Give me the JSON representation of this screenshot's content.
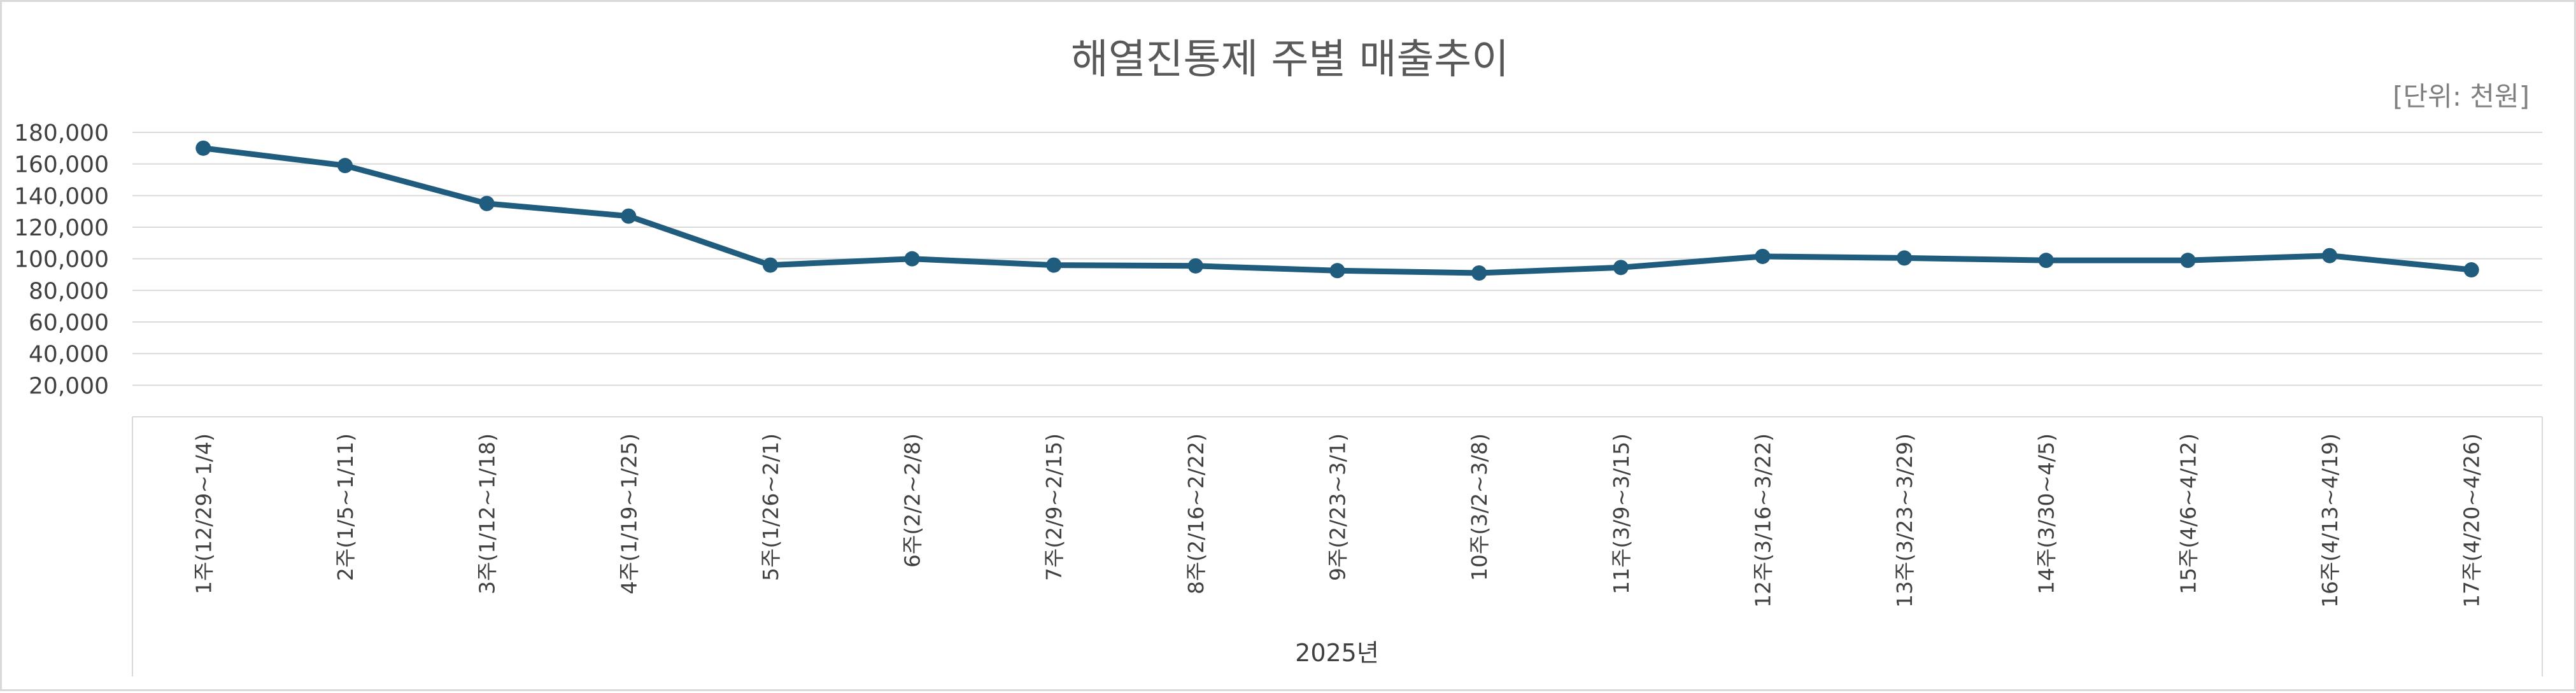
{
  "chart_data": {
    "type": "line",
    "title": "해열진통제 주별 매출추이",
    "unit_label": "[단위: 천원]",
    "group_label": "2025년",
    "categories": [
      "1주(12/29~1/4)",
      "2주(1/5~1/11)",
      "3주(1/12~1/18)",
      "4주(1/19~1/25)",
      "5주(1/26~2/1)",
      "6주(2/2~2/8)",
      "7주(2/9~2/15)",
      "8주(2/16~2/22)",
      "9주(2/23~3/1)",
      "10주(3/2~3/8)",
      "11주(3/9~3/15)",
      "12주(3/16~3/22)",
      "13주(3/23~3/29)",
      "14주(3/30~4/5)",
      "15주(4/6~4/12)",
      "16주(4/13~4/19)",
      "17주(4/20~4/26)"
    ],
    "values": [
      170000,
      159000,
      135000,
      127000,
      96000,
      100000,
      96000,
      95500,
      92500,
      91000,
      94500,
      101500,
      100500,
      99000,
      99000,
      102000,
      93000
    ],
    "y_ticks": [
      "20,000",
      "40,000",
      "60,000",
      "80,000",
      "100,000",
      "120,000",
      "140,000",
      "160,000",
      "180,000"
    ],
    "ylim": [
      0,
      180000
    ],
    "grid": true,
    "legend": "none",
    "colors": {
      "line": "#1f5c7d",
      "grid": "#d9d9d9",
      "axis": "#d9d9d9"
    }
  }
}
